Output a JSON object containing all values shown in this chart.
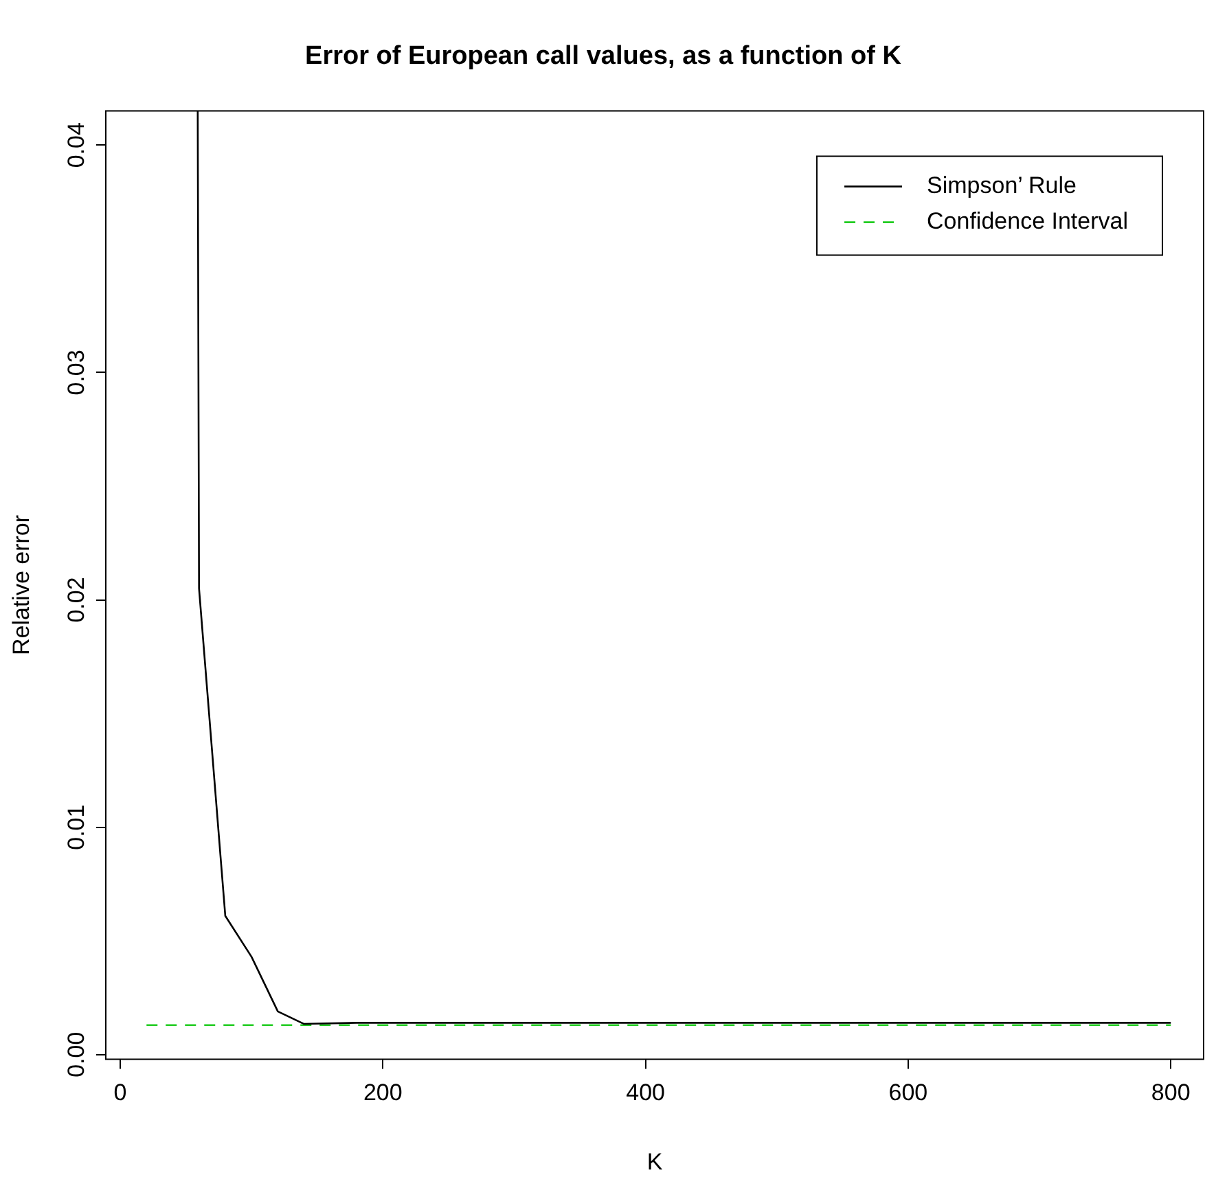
{
  "chart_data": {
    "type": "line",
    "title": "Error of European call values, as a function of K",
    "xlabel": "K",
    "ylabel": "Relative error",
    "xlim": [
      -11,
      825
    ],
    "xticks": [
      0,
      200,
      400,
      600,
      800
    ],
    "ylim": [
      -0.0002,
      0.0415
    ],
    "yticks": [
      {
        "value": 0,
        "label": "0.00"
      },
      {
        "value": 0.01,
        "label": "0.01"
      },
      {
        "value": 0.02,
        "label": "0.02"
      },
      {
        "value": 0.03,
        "label": "0.03"
      },
      {
        "value": 0.04,
        "label": "0.04"
      }
    ],
    "grid": false,
    "legend": "top right",
    "marker": "none",
    "series": [
      {
        "name": "Simpson’ Rule",
        "color": "#000000",
        "line_style": "solid",
        "x": [
          59,
          60,
          80,
          100,
          120,
          140,
          180,
          200,
          300,
          400,
          500,
          600,
          700,
          800
        ],
        "values": [
          0.0415,
          0.0205,
          0.0061,
          0.0043,
          0.0019,
          0.00135,
          0.0014,
          0.0014,
          0.0014,
          0.0014,
          0.0014,
          0.0014,
          0.0014,
          0.0014
        ]
      },
      {
        "name": "Confidence Interval",
        "color": "#22cc22",
        "line_style": "dashed",
        "x": [
          20,
          800
        ],
        "values": [
          0.0013,
          0.0013
        ]
      }
    ]
  }
}
